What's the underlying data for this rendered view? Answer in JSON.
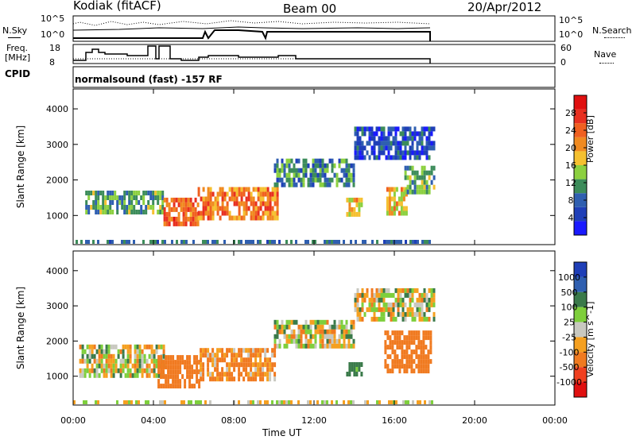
{
  "header": {
    "station": "Kodiak (fitACF)",
    "beam": "Beam 00",
    "date": "20/Apr/2012"
  },
  "params": {
    "nsky_label": "N.Sky",
    "nsearch_label": "N.Search",
    "freq_label_1": "Freq.",
    "freq_label_2": "[MHz]",
    "nave_label": "Nave",
    "cpid_label": "CPID",
    "cpid_text": "normalsound (fast) -157 RF",
    "noise_ticks": [
      "10^5",
      "10^0"
    ],
    "noise_ticks_right": [
      "10^5",
      "10^0"
    ],
    "freq_ticks": [
      "18",
      "8"
    ],
    "nave_ticks": [
      "60",
      "0"
    ]
  },
  "colors": {
    "power_scale": [
      "#1a1aff",
      "#1f3fb8",
      "#2f5fb0",
      "#3c8c5a",
      "#8cd040",
      "#f5c030",
      "#f08a20",
      "#f06020",
      "#e83020",
      "#e01010"
    ],
    "velocity_scale": [
      "#1f3fb8",
      "#2f5fb0",
      "#3a7a4a",
      "#7ecf3c",
      "#c8c8c0",
      "#f5a020",
      "#f07a20",
      "#f04020",
      "#e01010"
    ],
    "ground": "#c8c8c0"
  },
  "chart_data": [
    {
      "type": "heatmap",
      "title": "Power",
      "xlabel": "Time UT",
      "ylabel": "Slant Range [km]",
      "x_ticks": [
        "00:00",
        "04:00",
        "08:00",
        "12:00",
        "16:00",
        "20:00",
        "00:00"
      ],
      "x_range_hours": [
        0,
        24
      ],
      "y_ticks": [
        "1000",
        "2000",
        "3000",
        "4000"
      ],
      "ylim": [
        180,
        4560
      ],
      "colorbar_label": "Power [dB]",
      "colorbar_ticks": [
        "4",
        "8",
        "12",
        "16",
        "20",
        "24",
        "28"
      ],
      "colorbar_range": [
        0,
        32
      ],
      "echo_regions": [
        {
          "t0": 0.6,
          "t1": 4.5,
          "r0": 1050,
          "r1": 1700,
          "level": 12
        },
        {
          "t0": 4.5,
          "t1": 6.2,
          "r0": 800,
          "r1": 1500,
          "level": 24
        },
        {
          "t0": 6.2,
          "t1": 10.2,
          "r0": 900,
          "r1": 1800,
          "level": 22
        },
        {
          "t0": 10.0,
          "t1": 14.0,
          "r0": 1800,
          "r1": 2600,
          "level": 10
        },
        {
          "t0": 13.6,
          "t1": 14.4,
          "r0": 1000,
          "r1": 1500,
          "level": 18
        },
        {
          "t0": 14.0,
          "t1": 18.0,
          "r0": 2600,
          "r1": 3500,
          "level": 6
        },
        {
          "t0": 15.6,
          "t1": 16.6,
          "r0": 1100,
          "r1": 1800,
          "level": 18
        },
        {
          "t0": 16.5,
          "t1": 18.0,
          "r0": 1700,
          "r1": 2400,
          "level": 12
        }
      ]
    },
    {
      "type": "heatmap",
      "title": "Velocity",
      "xlabel": "Time UT",
      "ylabel": "Slant Range [km]",
      "x_ticks": [
        "00:00",
        "04:00",
        "08:00",
        "12:00",
        "16:00",
        "20:00",
        "00:00"
      ],
      "x_range_hours": [
        0,
        24
      ],
      "y_ticks": [
        "1000",
        "2000",
        "3000",
        "4000"
      ],
      "ylim": [
        180,
        4560
      ],
      "colorbar_label": "Velocity [m s^-1]",
      "colorbar_ticks": [
        "1000",
        "500",
        "100",
        "25",
        "-25",
        "-100",
        "-500",
        "-1000"
      ],
      "echo_regions": [
        {
          "t0": 0.3,
          "t1": 4.5,
          "r0": 1000,
          "r1": 1900,
          "level": 0
        },
        {
          "t0": 4.2,
          "t1": 6.3,
          "r0": 700,
          "r1": 1600,
          "level": -300
        },
        {
          "t0": 6.3,
          "t1": 10.0,
          "r0": 950,
          "r1": 1800,
          "level": -150
        },
        {
          "t0": 10.0,
          "t1": 14.0,
          "r0": 1800,
          "r1": 2600,
          "level": 0
        },
        {
          "t0": 13.6,
          "t1": 14.4,
          "r0": 1000,
          "r1": 1400,
          "level": 200
        },
        {
          "t0": 14.0,
          "t1": 18.0,
          "r0": 2600,
          "r1": 3500,
          "level": 0
        },
        {
          "t0": 15.5,
          "t1": 17.8,
          "r0": 1200,
          "r1": 2300,
          "level": -300
        }
      ]
    }
  ]
}
